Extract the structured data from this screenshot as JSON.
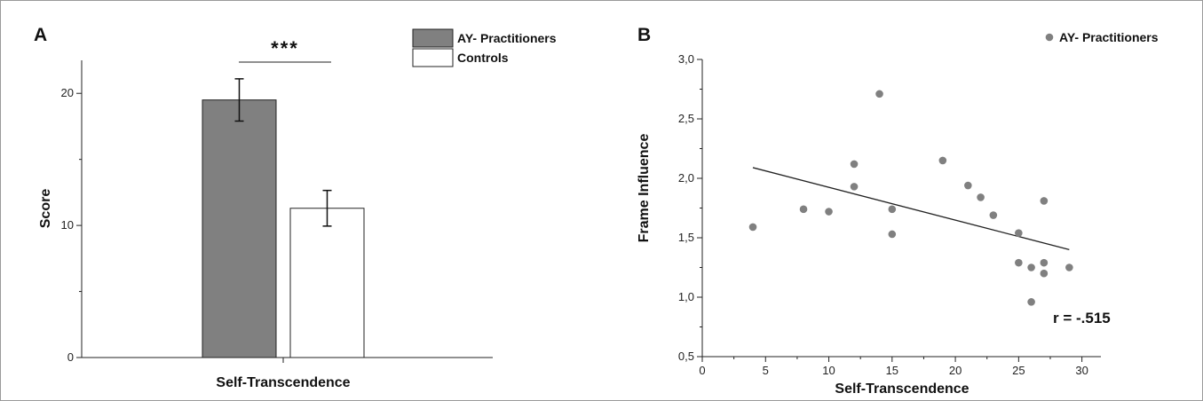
{
  "chart_data": [
    {
      "panel": "A",
      "type": "bar",
      "categories": [
        "Self-Transcendence"
      ],
      "series": [
        {
          "name": "AY- Practitioners",
          "values": [
            19.5
          ],
          "error": [
            1.6
          ],
          "color": "#808080"
        },
        {
          "name": "Controls",
          "values": [
            11.3
          ],
          "error": [
            1.35
          ],
          "color": "#ffffff"
        }
      ],
      "xlabel": "Self-Transcendence",
      "ylabel": "Score",
      "ylim": [
        0,
        22.5
      ],
      "yticks": [
        "0",
        "10",
        "20"
      ],
      "significance": "***",
      "legend_position": "top-right",
      "grid": false
    },
    {
      "panel": "B",
      "type": "scatter",
      "series": [
        {
          "name": "AY- Practitioners",
          "color": "#808080",
          "points": [
            [
              4,
              1.59
            ],
            [
              8,
              1.74
            ],
            [
              10,
              1.72
            ],
            [
              12,
              2.12
            ],
            [
              12,
              1.93
            ],
            [
              14,
              2.71
            ],
            [
              15,
              1.74
            ],
            [
              15,
              1.53
            ],
            [
              19,
              2.15
            ],
            [
              21,
              1.94
            ],
            [
              22,
              1.84
            ],
            [
              23,
              1.69
            ],
            [
              25,
              1.54
            ],
            [
              25,
              1.29
            ],
            [
              26,
              1.25
            ],
            [
              26,
              0.96
            ],
            [
              27,
              1.81
            ],
            [
              27,
              1.29
            ],
            [
              27,
              1.2
            ],
            [
              29,
              1.25
            ]
          ]
        }
      ],
      "fit_line": {
        "x": [
          4,
          29
        ],
        "y": [
          2.09,
          1.4
        ]
      },
      "xlabel": "Self-Transcendence",
      "ylabel": "Frame Influence",
      "xlim": [
        0,
        31.5
      ],
      "ylim": [
        0.5,
        3.0
      ],
      "xticks": [
        "0",
        "5",
        "10",
        "15",
        "20",
        "25",
        "30"
      ],
      "yticks": [
        "0,5",
        "1,0",
        "1,5",
        "2,0",
        "2,5",
        "3,0"
      ],
      "annotation": "r = -.515",
      "legend_position": "top-right",
      "grid": false
    }
  ]
}
